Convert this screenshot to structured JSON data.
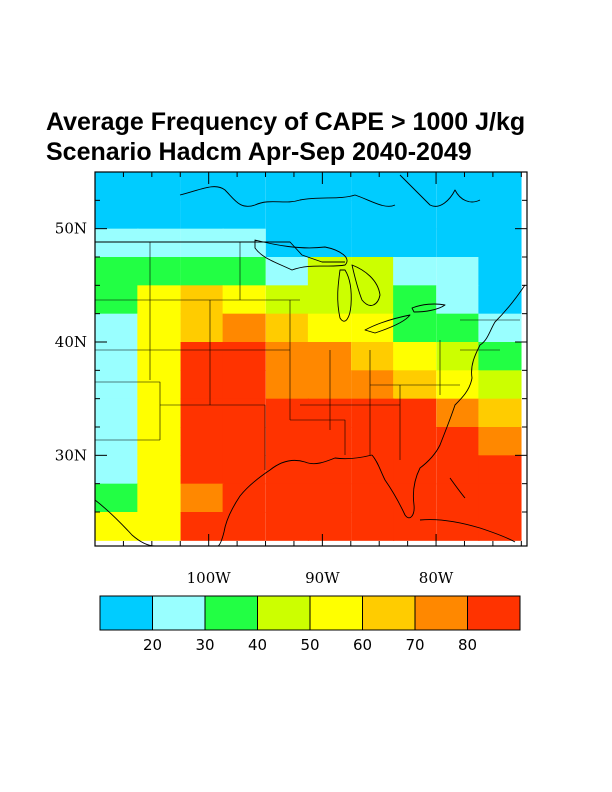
{
  "title": {
    "line1": "Average Frequency of CAPE > 1000 J/kg",
    "line2": "Scenario Hadcm Apr-Sep 2040-2049"
  },
  "map": {
    "projection": "lat-lon",
    "lon_range": [
      -110,
      -72
    ],
    "lat_range": [
      22,
      55
    ],
    "lat_ticks": [
      {
        "value": 50,
        "label": "50N"
      },
      {
        "value": 40,
        "label": "40N"
      },
      {
        "value": 30,
        "label": "30N"
      }
    ],
    "lon_ticks": [
      {
        "value": -100,
        "label": "100W"
      },
      {
        "value": -90,
        "label": "90W"
      },
      {
        "value": -80,
        "label": "80W"
      }
    ],
    "grid_lon_step": 3.75,
    "grid_lat_step": 2.5
  },
  "colorbar": {
    "labels": [
      "20",
      "30",
      "40",
      "50",
      "60",
      "70",
      "80"
    ],
    "colors": [
      "#00ccff",
      "#99ffff",
      "#22ff44",
      "#ccff00",
      "#ffff00",
      "#ffcc00",
      "#ff8800",
      "#ff3300"
    ]
  },
  "chart_data": {
    "type": "heatmap",
    "variable": "Average Frequency of CAPE > 1000 J/kg",
    "scenario": "Hadcm Apr-Sep 2040-2049",
    "bins": [
      {
        "range": "<20",
        "color": "#00ccff"
      },
      {
        "range": "20-30",
        "color": "#99ffff"
      },
      {
        "range": "30-40",
        "color": "#22ff44"
      },
      {
        "range": "40-50",
        "color": "#ccff00"
      },
      {
        "range": "50-60",
        "color": "#ffff00"
      },
      {
        "range": "60-70",
        "color": "#ffcc00"
      },
      {
        "range": "70-80",
        "color": "#ff8800"
      },
      {
        "range": ">80",
        "color": "#ff3300"
      }
    ],
    "column_center_lons": [
      -108.1,
      -104.4,
      -100.6,
      -96.9,
      -93.1,
      -89.4,
      -85.6,
      -81.9,
      -78.1,
      -74.4
    ],
    "row_center_lats": [
      53.75,
      51.25,
      48.75,
      46.25,
      43.75,
      41.25,
      38.75,
      36.25,
      33.75,
      31.25,
      28.75,
      26.25,
      23.75
    ],
    "grid_bins_top_to_bottom": [
      [
        0,
        0,
        0,
        0,
        0,
        0,
        0,
        0,
        0,
        0
      ],
      [
        0,
        0,
        0,
        0,
        0,
        0,
        0,
        0,
        0,
        0
      ],
      [
        1,
        1,
        1,
        1,
        0,
        0,
        0,
        0,
        0,
        0
      ],
      [
        2,
        2,
        2,
        2,
        1,
        3,
        3,
        1,
        1,
        0
      ],
      [
        2,
        4,
        5,
        4,
        3,
        3,
        3,
        2,
        1,
        0
      ],
      [
        1,
        4,
        5,
        6,
        5,
        4,
        4,
        2,
        2,
        1
      ],
      [
        1,
        4,
        7,
        7,
        6,
        6,
        5,
        4,
        3,
        2
      ],
      [
        1,
        4,
        7,
        7,
        6,
        6,
        6,
        5,
        4,
        3
      ],
      [
        1,
        4,
        7,
        7,
        7,
        7,
        7,
        7,
        6,
        5
      ],
      [
        1,
        4,
        7,
        7,
        7,
        7,
        7,
        7,
        7,
        6
      ],
      [
        1,
        4,
        7,
        7,
        7,
        7,
        7,
        7,
        7,
        7
      ],
      [
        2,
        4,
        6,
        7,
        7,
        7,
        7,
        7,
        7,
        7
      ],
      [
        4,
        4,
        7,
        7,
        7,
        7,
        7,
        7,
        7,
        7
      ]
    ]
  }
}
